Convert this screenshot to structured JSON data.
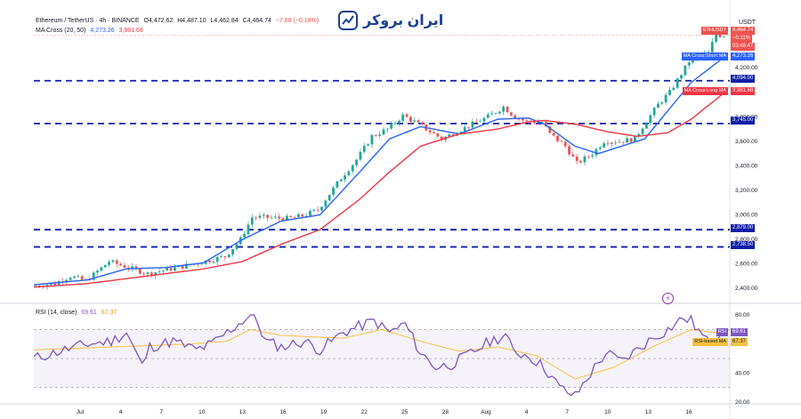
{
  "header": {
    "symbol": "Ethereum / TetherUS · 4h · BINANCE",
    "open": "O4,472.62",
    "high": "H4,487.10",
    "low": "L4,462.84",
    "close": "C4,464.74",
    "change": "−7.88 (−0.18%)",
    "ma_label": "MA Cross (20, 50)",
    "ma_short_value": "4,273.26",
    "ma_long_value": "3,981.68",
    "rsi_label": "RSI (14, close)",
    "rsi_value": "69.61",
    "rsi_ma_value": "67.37"
  },
  "brand": {
    "name": "ایران بروکر"
  },
  "price_axis": {
    "currency": "USDT"
  },
  "price_tags": {
    "symbol": "ETHUSDT",
    "last_price": "4,464.74",
    "change_pct": "−0.11%",
    "countdown": "03:46:47",
    "short_ma_label": "MA Cross:Short MA",
    "short_ma_value": "4,273.26",
    "long_ma_label": "MA Cross:Long MA",
    "long_ma_value": "3,981.68",
    "level_4094": "4,094.00",
    "level_3745": "3,745.00",
    "level_2879": "2,879.00",
    "level_2738": "2,738.50"
  },
  "rsi_tags": {
    "rsi_label": "RSI",
    "rsi_value": "69.61",
    "ma_label": "RSI-based MA",
    "ma_value": "67.37"
  },
  "colors": {
    "up": "#26a69a",
    "down": "#ef5350",
    "short_ma": "#2962ff",
    "long_ma": "#f23645",
    "levels": "#0d1ea8",
    "rsi": "#7e57c2",
    "rsi_ma": "#f5c242"
  },
  "chart_data": [
    {
      "type": "candlestick",
      "title": "Ethereum / TetherUS · 4h · BINANCE",
      "ylabel": "USDT",
      "ylim": [
        2300,
        4680
      ],
      "y_ticks": [
        "4,200.00",
        "3,800.00",
        "3,600.00",
        "3,400.00",
        "3,200.00",
        "3,000.00",
        "2,800.00",
        "2,600.00",
        "2,400.00"
      ],
      "y_tick_values": [
        4200,
        3800,
        3600,
        3400,
        3200,
        3000,
        2800,
        2600,
        2400
      ],
      "x_ticks": [
        "Jul",
        "4",
        "7",
        "10",
        "13",
        "16",
        "19",
        "22",
        "25",
        "28",
        "Aug",
        "4",
        "7",
        "10",
        "13",
        "16"
      ],
      "close_path": [
        [
          0,
          2420
        ],
        [
          6,
          2440
        ],
        [
          10,
          2500
        ],
        [
          14,
          2460
        ],
        [
          20,
          2620
        ],
        [
          24,
          2580
        ],
        [
          30,
          2520
        ],
        [
          36,
          2560
        ],
        [
          42,
          2600
        ],
        [
          50,
          2660
        ],
        [
          54,
          2800
        ],
        [
          57,
          2980
        ],
        [
          60,
          2980
        ],
        [
          66,
          2970
        ],
        [
          70,
          2990
        ],
        [
          74,
          3040
        ],
        [
          80,
          3300
        ],
        [
          84,
          3450
        ],
        [
          88,
          3640
        ],
        [
          92,
          3700
        ],
        [
          96,
          3810
        ],
        [
          99,
          3760
        ],
        [
          102,
          3700
        ],
        [
          106,
          3620
        ],
        [
          110,
          3680
        ],
        [
          114,
          3740
        ],
        [
          118,
          3800
        ],
        [
          122,
          3880
        ],
        [
          125,
          3800
        ],
        [
          128,
          3760
        ],
        [
          132,
          3760
        ],
        [
          134,
          3660
        ],
        [
          138,
          3560
        ],
        [
          141,
          3420
        ],
        [
          145,
          3500
        ],
        [
          148,
          3600
        ],
        [
          152,
          3600
        ],
        [
          156,
          3620
        ],
        [
          158,
          3720
        ],
        [
          162,
          3900
        ],
        [
          165,
          4000
        ],
        [
          167,
          4100
        ],
        [
          170,
          4250
        ],
        [
          173,
          4300
        ],
        [
          175,
          4320
        ],
        [
          177,
          4480
        ],
        [
          178,
          4465
        ]
      ],
      "horizontal_levels": [
        4094,
        3745,
        2879,
        2738.5
      ],
      "series": [
        {
          "name": "MA Cross:Short MA (20)",
          "last": 4273.26,
          "points": [
            [
              0,
              2430
            ],
            [
              14,
              2470
            ],
            [
              24,
              2560
            ],
            [
              34,
              2570
            ],
            [
              44,
              2610
            ],
            [
              54,
              2800
            ],
            [
              64,
              2950
            ],
            [
              74,
              3000
            ],
            [
              84,
              3340
            ],
            [
              92,
              3620
            ],
            [
              100,
              3720
            ],
            [
              110,
              3660
            ],
            [
              120,
              3780
            ],
            [
              128,
              3790
            ],
            [
              132,
              3740
            ],
            [
              140,
              3560
            ],
            [
              146,
              3500
            ],
            [
              152,
              3560
            ],
            [
              158,
              3620
            ],
            [
              164,
              3850
            ],
            [
              170,
              4080
            ],
            [
              178,
              4273
            ]
          ]
        },
        {
          "name": "MA Cross:Long MA (50)",
          "last": 3981.68,
          "points": [
            [
              0,
              2410
            ],
            [
              14,
              2440
            ],
            [
              24,
              2480
            ],
            [
              34,
              2520
            ],
            [
              44,
              2560
            ],
            [
              54,
              2620
            ],
            [
              64,
              2760
            ],
            [
              74,
              2880
            ],
            [
              84,
              3120
            ],
            [
              92,
              3350
            ],
            [
              100,
              3560
            ],
            [
              110,
              3660
            ],
            [
              120,
              3700
            ],
            [
              128,
              3760
            ],
            [
              132,
              3770
            ],
            [
              140,
              3740
            ],
            [
              148,
              3680
            ],
            [
              156,
              3640
            ],
            [
              164,
              3670
            ],
            [
              170,
              3780
            ],
            [
              178,
              3982
            ]
          ]
        }
      ]
    },
    {
      "type": "line",
      "title": "RSI (14, close)",
      "ylim": [
        20,
        85
      ],
      "y_ticks": [
        "80.00",
        "40.00",
        "20.00"
      ],
      "y_tick_values": [
        80,
        40,
        20
      ],
      "bands": [
        70,
        30
      ],
      "series": [
        {
          "name": "RSI",
          "last": 69.61,
          "points": [
            [
              0,
              50
            ],
            [
              8,
              56
            ],
            [
              14,
              60
            ],
            [
              20,
              62
            ],
            [
              24,
              68
            ],
            [
              28,
              45
            ],
            [
              30,
              58
            ],
            [
              36,
              62
            ],
            [
              42,
              56
            ],
            [
              46,
              60
            ],
            [
              50,
              68
            ],
            [
              54,
              76
            ],
            [
              56,
              80
            ],
            [
              58,
              74
            ],
            [
              60,
              62
            ],
            [
              64,
              58
            ],
            [
              70,
              62
            ],
            [
              74,
              56
            ],
            [
              80,
              68
            ],
            [
              84,
              72
            ],
            [
              88,
              76
            ],
            [
              92,
              68
            ],
            [
              96,
              74
            ],
            [
              100,
              54
            ],
            [
              104,
              44
            ],
            [
              108,
              46
            ],
            [
              112,
              52
            ],
            [
              118,
              62
            ],
            [
              122,
              66
            ],
            [
              124,
              55
            ],
            [
              128,
              52
            ],
            [
              132,
              44
            ],
            [
              136,
              30
            ],
            [
              140,
              24
            ],
            [
              144,
              40
            ],
            [
              148,
              54
            ],
            [
              152,
              48
            ],
            [
              156,
              56
            ],
            [
              160,
              64
            ],
            [
              164,
              70
            ],
            [
              168,
              78
            ],
            [
              170,
              76
            ],
            [
              174,
              62
            ],
            [
              178,
              69.6
            ]
          ]
        },
        {
          "name": "RSI-based MA",
          "last": 67.37,
          "points": [
            [
              0,
              56
            ],
            [
              20,
              58
            ],
            [
              40,
              60
            ],
            [
              50,
              62
            ],
            [
              56,
              70
            ],
            [
              64,
              66
            ],
            [
              80,
              64
            ],
            [
              90,
              70
            ],
            [
              100,
              62
            ],
            [
              110,
              55
            ],
            [
              120,
              58
            ],
            [
              130,
              52
            ],
            [
              140,
              36
            ],
            [
              150,
              44
            ],
            [
              160,
              58
            ],
            [
              170,
              70
            ],
            [
              178,
              67.4
            ]
          ]
        }
      ]
    }
  ]
}
